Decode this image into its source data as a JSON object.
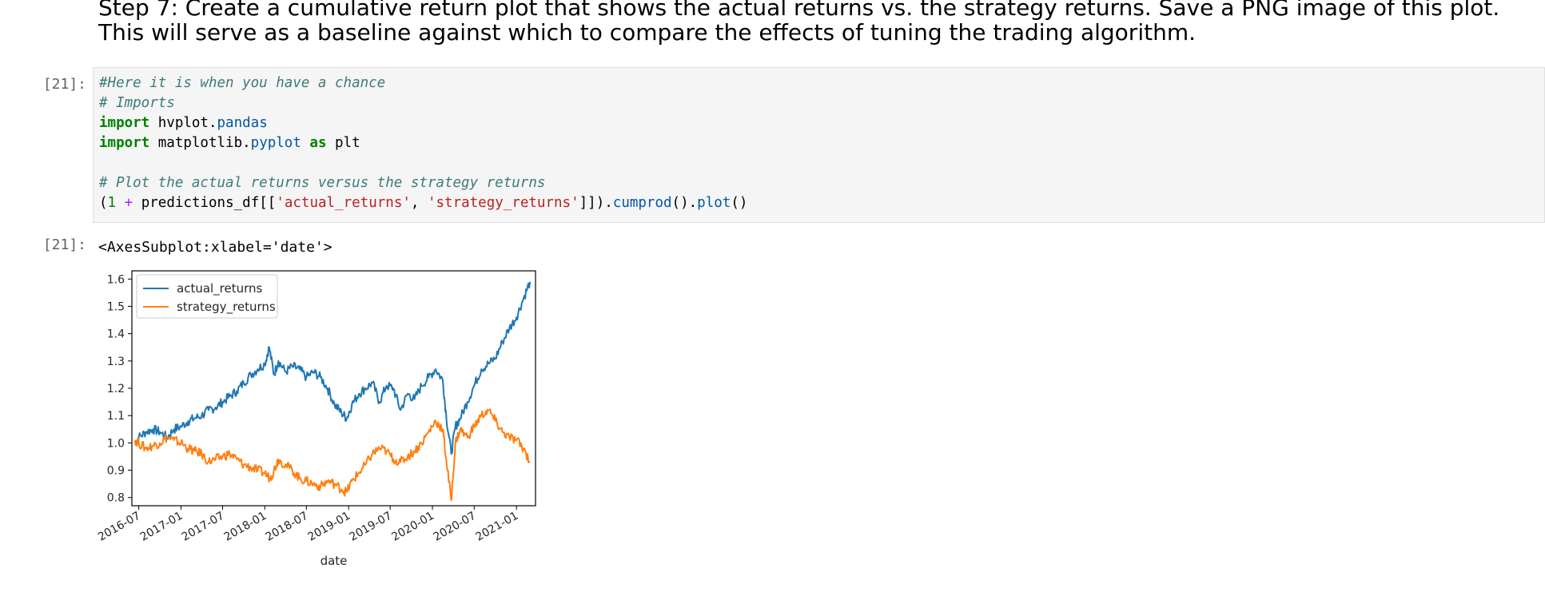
{
  "markdown": {
    "text": "Step 7: Create a cumulative return plot that shows the actual returns vs. the strategy returns. Save a PNG image of this plot. This will serve as a baseline against which to compare the effects of tuning the trading algorithm."
  },
  "input_cell": {
    "prompt": "[21]:",
    "lines": {
      "l1": "#Here it is when you have a chance",
      "l2": "# Imports",
      "l3_kw": "import",
      "l3_a": " hvplot.",
      "l3_b": "pandas",
      "l4_kw": "import",
      "l4_a": " matplotlib.",
      "l4_b": "pyplot",
      "l4_c": " ",
      "l4_kw2": "as",
      "l4_d": " plt",
      "l6": "# Plot the actual returns versus the strategy returns",
      "l7_a": "(",
      "l7_num": "1",
      "l7_b": " ",
      "l7_op": "+",
      "l7_c": " predictions_df[[",
      "l7_s1": "'actual_returns'",
      "l7_d": ", ",
      "l7_s2": "'strategy_returns'",
      "l7_e": "]]).",
      "l7_f": "cumprod",
      "l7_g": "().",
      "l7_h": "plot",
      "l7_i": "()"
    }
  },
  "output_cell": {
    "prompt": "[21]:",
    "text": "<AxesSubplot:xlabel='date'>"
  },
  "chart_data": {
    "type": "line",
    "xlabel": "date",
    "ylabel": "",
    "xlim": [
      "2016-06-01",
      "2021-03-25"
    ],
    "ylim": [
      0.77,
      1.63
    ],
    "x_ticks": [
      "2016-07",
      "2017-01",
      "2017-07",
      "2018-01",
      "2018-07",
      "2019-01",
      "2019-07",
      "2020-01",
      "2020-07",
      "2021-01"
    ],
    "y_ticks": [
      "0.8",
      "0.9",
      "1.0",
      "1.1",
      "1.2",
      "1.3",
      "1.4",
      "1.5",
      "1.6"
    ],
    "legend_position": "top-left",
    "grid": false,
    "series": [
      {
        "name": "actual_returns",
        "color": "#1f77b4",
        "points": [
          [
            "2016-06-15",
            1.0
          ],
          [
            "2016-07-01",
            1.02
          ],
          [
            "2016-08-01",
            1.04
          ],
          [
            "2016-09-01",
            1.05
          ],
          [
            "2016-10-01",
            1.04
          ],
          [
            "2016-11-01",
            1.02
          ],
          [
            "2016-12-01",
            1.05
          ],
          [
            "2017-01-01",
            1.06
          ],
          [
            "2017-02-01",
            1.08
          ],
          [
            "2017-03-01",
            1.09
          ],
          [
            "2017-04-01",
            1.1
          ],
          [
            "2017-05-01",
            1.12
          ],
          [
            "2017-06-01",
            1.13
          ],
          [
            "2017-07-01",
            1.15
          ],
          [
            "2017-08-01",
            1.17
          ],
          [
            "2017-09-01",
            1.19
          ],
          [
            "2017-10-01",
            1.22
          ],
          [
            "2017-11-01",
            1.25
          ],
          [
            "2017-12-01",
            1.27
          ],
          [
            "2018-01-01",
            1.29
          ],
          [
            "2018-01-20",
            1.35
          ],
          [
            "2018-02-10",
            1.25
          ],
          [
            "2018-03-01",
            1.3
          ],
          [
            "2018-04-01",
            1.26
          ],
          [
            "2018-05-01",
            1.28
          ],
          [
            "2018-06-01",
            1.27
          ],
          [
            "2018-07-01",
            1.24
          ],
          [
            "2018-08-01",
            1.26
          ],
          [
            "2018-09-01",
            1.24
          ],
          [
            "2018-10-01",
            1.2
          ],
          [
            "2018-11-01",
            1.14
          ],
          [
            "2018-12-01",
            1.11
          ],
          [
            "2018-12-24",
            1.09
          ],
          [
            "2019-01-15",
            1.14
          ],
          [
            "2019-02-15",
            1.18
          ],
          [
            "2019-03-15",
            1.2
          ],
          [
            "2019-04-15",
            1.22
          ],
          [
            "2019-05-15",
            1.15
          ],
          [
            "2019-06-15",
            1.21
          ],
          [
            "2019-07-15",
            1.2
          ],
          [
            "2019-08-15",
            1.12
          ],
          [
            "2019-09-15",
            1.18
          ],
          [
            "2019-10-15",
            1.16
          ],
          [
            "2019-11-15",
            1.21
          ],
          [
            "2019-12-15",
            1.24
          ],
          [
            "2020-01-15",
            1.27
          ],
          [
            "2020-02-15",
            1.23
          ],
          [
            "2020-03-01",
            1.1
          ],
          [
            "2020-03-23",
            0.96
          ],
          [
            "2020-04-10",
            1.06
          ],
          [
            "2020-05-01",
            1.09
          ],
          [
            "2020-06-01",
            1.15
          ],
          [
            "2020-07-01",
            1.21
          ],
          [
            "2020-08-01",
            1.27
          ],
          [
            "2020-09-01",
            1.29
          ],
          [
            "2020-10-01",
            1.31
          ],
          [
            "2020-11-01",
            1.37
          ],
          [
            "2020-12-01",
            1.42
          ],
          [
            "2021-01-01",
            1.46
          ],
          [
            "2021-02-01",
            1.53
          ],
          [
            "2021-03-01",
            1.59
          ]
        ]
      },
      {
        "name": "strategy_returns",
        "color": "#ff7f0e",
        "points": [
          [
            "2016-06-15",
            1.01
          ],
          [
            "2016-07-01",
            1.0
          ],
          [
            "2016-08-01",
            0.98
          ],
          [
            "2016-09-01",
            0.99
          ],
          [
            "2016-10-01",
            1.0
          ],
          [
            "2016-11-01",
            1.02
          ],
          [
            "2016-12-01",
            1.01
          ],
          [
            "2017-01-01",
            1.0
          ],
          [
            "2017-02-01",
            0.98
          ],
          [
            "2017-03-01",
            0.97
          ],
          [
            "2017-04-01",
            0.96
          ],
          [
            "2017-05-01",
            0.93
          ],
          [
            "2017-06-01",
            0.94
          ],
          [
            "2017-07-01",
            0.95
          ],
          [
            "2017-08-01",
            0.96
          ],
          [
            "2017-09-01",
            0.94
          ],
          [
            "2017-10-01",
            0.92
          ],
          [
            "2017-11-01",
            0.91
          ],
          [
            "2017-12-01",
            0.9
          ],
          [
            "2018-01-01",
            0.89
          ],
          [
            "2018-01-25",
            0.87
          ],
          [
            "2018-02-10",
            0.9
          ],
          [
            "2018-03-01",
            0.94
          ],
          [
            "2018-04-01",
            0.92
          ],
          [
            "2018-05-01",
            0.9
          ],
          [
            "2018-06-01",
            0.87
          ],
          [
            "2018-07-01",
            0.86
          ],
          [
            "2018-08-01",
            0.85
          ],
          [
            "2018-09-01",
            0.84
          ],
          [
            "2018-10-01",
            0.86
          ],
          [
            "2018-11-01",
            0.85
          ],
          [
            "2018-12-01",
            0.83
          ],
          [
            "2018-12-24",
            0.82
          ],
          [
            "2019-01-15",
            0.86
          ],
          [
            "2019-02-15",
            0.89
          ],
          [
            "2019-03-15",
            0.92
          ],
          [
            "2019-04-15",
            0.96
          ],
          [
            "2019-05-15",
            0.98
          ],
          [
            "2019-06-15",
            0.97
          ],
          [
            "2019-07-15",
            0.94
          ],
          [
            "2019-08-15",
            0.93
          ],
          [
            "2019-09-15",
            0.95
          ],
          [
            "2019-10-15",
            0.97
          ],
          [
            "2019-11-15",
            1.0
          ],
          [
            "2019-12-15",
            1.04
          ],
          [
            "2020-01-15",
            1.08
          ],
          [
            "2020-02-15",
            1.05
          ],
          [
            "2020-03-01",
            0.94
          ],
          [
            "2020-03-23",
            0.79
          ],
          [
            "2020-04-10",
            1.0
          ],
          [
            "2020-05-01",
            1.05
          ],
          [
            "2020-06-01",
            1.02
          ],
          [
            "2020-07-01",
            1.06
          ],
          [
            "2020-08-01",
            1.1
          ],
          [
            "2020-09-01",
            1.12
          ],
          [
            "2020-10-01",
            1.08
          ],
          [
            "2020-11-01",
            1.04
          ],
          [
            "2020-12-01",
            1.02
          ],
          [
            "2021-01-01",
            1.01
          ],
          [
            "2021-02-01",
            0.98
          ],
          [
            "2021-03-01",
            0.93
          ]
        ]
      }
    ]
  }
}
